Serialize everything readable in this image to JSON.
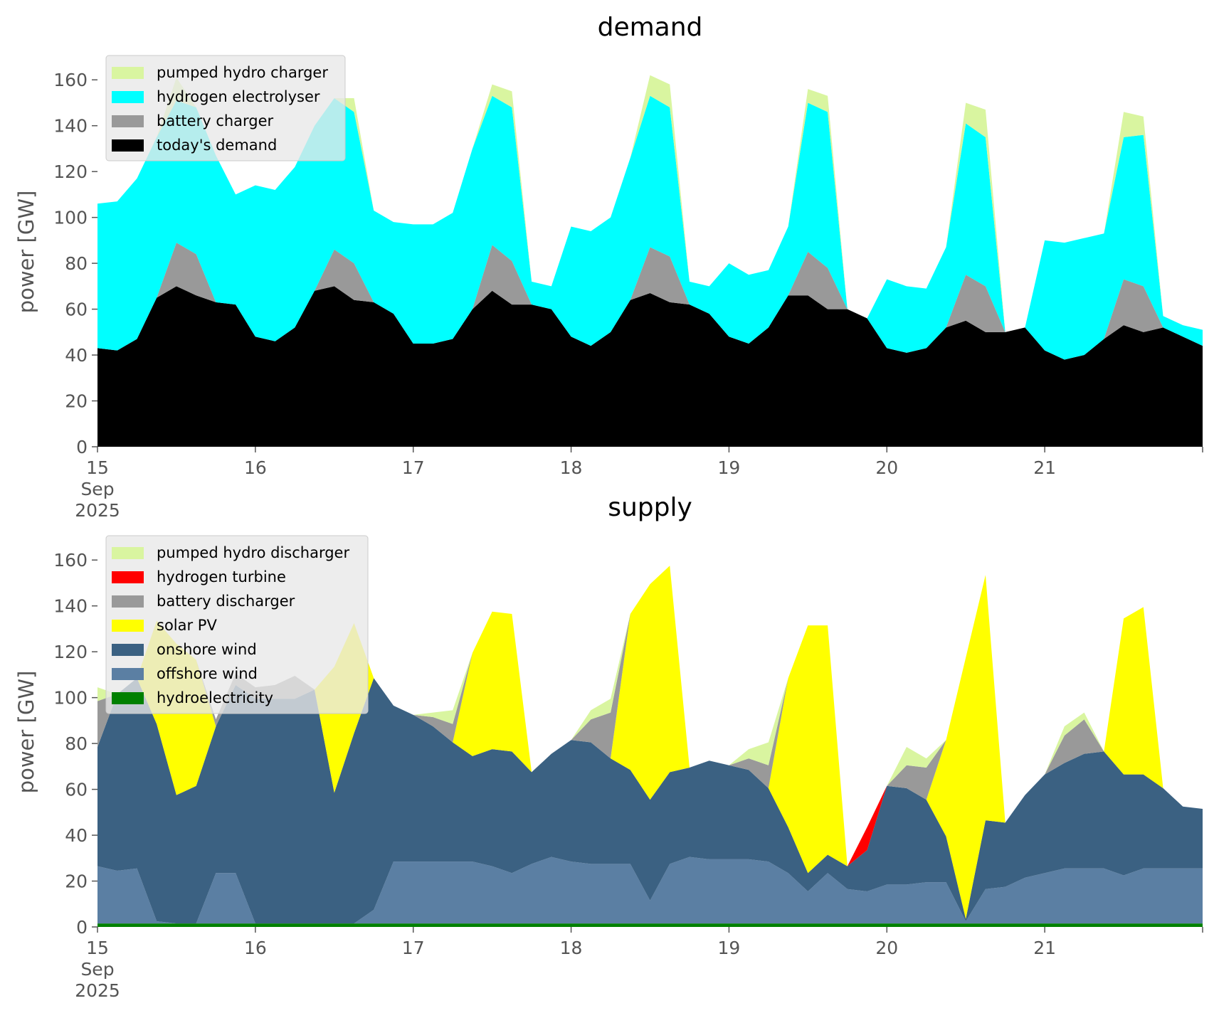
{
  "chart_data": [
    {
      "type": "area",
      "title": "demand",
      "xlabel": "",
      "ylabel": "power [GW]",
      "xlim": [
        "2025-09-15 00:00",
        "2025-09-22 00:00"
      ],
      "ylim": [
        0,
        170
      ],
      "yticks": [
        0,
        20,
        40,
        60,
        80,
        100,
        120,
        140,
        160
      ],
      "xticks": [
        {
          "date": "2025-09-15",
          "label": [
            "15",
            "Sep",
            "2025"
          ]
        },
        {
          "date": "2025-09-16",
          "label": [
            "16"
          ]
        },
        {
          "date": "2025-09-17",
          "label": [
            "17"
          ]
        },
        {
          "date": "2025-09-18",
          "label": [
            "18"
          ]
        },
        {
          "date": "2025-09-19",
          "label": [
            "19"
          ]
        },
        {
          "date": "2025-09-20",
          "label": [
            "20"
          ]
        },
        {
          "date": "2025-09-21",
          "label": [
            "21"
          ]
        }
      ],
      "stacked": true,
      "grid": false,
      "legend_position": "top-left",
      "x": [
        "2025-09-15 00:00",
        "2025-09-15 03:00",
        "2025-09-15 06:00",
        "2025-09-15 09:00",
        "2025-09-15 12:00",
        "2025-09-15 15:00",
        "2025-09-15 18:00",
        "2025-09-15 21:00",
        "2025-09-16 00:00",
        "2025-09-16 03:00",
        "2025-09-16 06:00",
        "2025-09-16 09:00",
        "2025-09-16 12:00",
        "2025-09-16 15:00",
        "2025-09-16 18:00",
        "2025-09-16 21:00",
        "2025-09-17 00:00",
        "2025-09-17 03:00",
        "2025-09-17 06:00",
        "2025-09-17 09:00",
        "2025-09-17 12:00",
        "2025-09-17 15:00",
        "2025-09-17 18:00",
        "2025-09-17 21:00",
        "2025-09-18 00:00",
        "2025-09-18 03:00",
        "2025-09-18 06:00",
        "2025-09-18 09:00",
        "2025-09-18 12:00",
        "2025-09-18 15:00",
        "2025-09-18 18:00",
        "2025-09-18 21:00",
        "2025-09-19 00:00",
        "2025-09-19 03:00",
        "2025-09-19 06:00",
        "2025-09-19 09:00",
        "2025-09-19 12:00",
        "2025-09-19 15:00",
        "2025-09-19 18:00",
        "2025-09-19 21:00",
        "2025-09-20 00:00",
        "2025-09-20 03:00",
        "2025-09-20 06:00",
        "2025-09-20 09:00",
        "2025-09-20 12:00",
        "2025-09-20 15:00",
        "2025-09-20 18:00",
        "2025-09-20 21:00",
        "2025-09-21 00:00",
        "2025-09-21 03:00",
        "2025-09-21 06:00",
        "2025-09-21 09:00",
        "2025-09-21 12:00",
        "2025-09-21 15:00",
        "2025-09-21 18:00",
        "2025-09-21 21:00",
        "2025-09-22 00:00"
      ],
      "series": [
        {
          "name": "today's demand",
          "color": "#000000",
          "values": [
            43,
            42,
            47,
            65,
            70,
            66,
            63,
            62,
            48,
            46,
            52,
            68,
            70,
            64,
            63,
            58,
            45,
            45,
            47,
            60,
            68,
            62,
            62,
            60,
            48,
            44,
            50,
            64,
            67,
            63,
            62,
            58,
            48,
            45,
            52,
            66,
            66,
            60,
            60,
            56,
            43,
            41,
            43,
            52,
            55,
            50,
            50,
            52,
            42,
            38,
            40,
            47,
            53,
            50,
            52,
            48,
            44
          ]
        },
        {
          "name": "battery charger",
          "color": "#999999",
          "values": [
            0,
            0,
            0,
            0,
            19,
            18,
            0,
            0,
            0,
            0,
            0,
            0,
            16,
            16,
            0,
            0,
            0,
            0,
            0,
            0,
            20,
            19,
            0,
            0,
            0,
            0,
            0,
            0,
            20,
            20,
            0,
            0,
            0,
            0,
            0,
            0,
            19,
            18,
            0,
            0,
            0,
            0,
            0,
            0,
            20,
            20,
            0,
            0,
            0,
            0,
            0,
            0,
            20,
            20,
            0,
            0,
            0
          ]
        },
        {
          "name": "hydrogen electrolyser",
          "color": "#00ffff",
          "values": [
            63,
            65,
            70,
            70,
            62,
            64,
            64,
            48,
            66,
            66,
            70,
            72,
            66,
            66,
            40,
            40,
            52,
            52,
            55,
            70,
            65,
            67,
            10,
            10,
            48,
            50,
            50,
            62,
            66,
            65,
            10,
            12,
            32,
            30,
            25,
            30,
            65,
            68,
            0,
            0,
            30,
            29,
            26,
            35,
            66,
            65,
            0,
            0,
            48,
            51,
            51,
            46,
            62,
            66,
            5,
            5,
            7
          ]
        },
        {
          "name": "pumped hydro charger",
          "color": "#d9f5a0",
          "values": [
            0,
            0,
            0,
            0,
            10,
            0,
            0,
            0,
            0,
            0,
            0,
            0,
            0,
            6,
            0,
            0,
            0,
            0,
            0,
            0,
            5,
            7,
            0,
            0,
            0,
            0,
            0,
            0,
            9,
            10,
            0,
            0,
            0,
            0,
            0,
            0,
            6,
            7,
            0,
            0,
            0,
            0,
            0,
            0,
            9,
            12,
            0,
            0,
            0,
            0,
            0,
            0,
            11,
            8,
            0,
            0,
            0
          ]
        }
      ]
    },
    {
      "type": "area",
      "title": "supply",
      "xlabel": "",
      "ylabel": "power [GW]",
      "xlim": [
        "2025-09-15 00:00",
        "2025-09-22 00:00"
      ],
      "ylim": [
        0,
        170
      ],
      "yticks": [
        0,
        20,
        40,
        60,
        80,
        100,
        120,
        140,
        160
      ],
      "xticks": [
        {
          "date": "2025-09-15",
          "label": [
            "15",
            "Sep",
            "2025"
          ]
        },
        {
          "date": "2025-09-16",
          "label": [
            "16"
          ]
        },
        {
          "date": "2025-09-17",
          "label": [
            "17"
          ]
        },
        {
          "date": "2025-09-18",
          "label": [
            "18"
          ]
        },
        {
          "date": "2025-09-19",
          "label": [
            "19"
          ]
        },
        {
          "date": "2025-09-20",
          "label": [
            "20"
          ]
        },
        {
          "date": "2025-09-21",
          "label": [
            "21"
          ]
        }
      ],
      "stacked": true,
      "grid": false,
      "legend_position": "top-left",
      "x": [
        "2025-09-15 00:00",
        "2025-09-15 03:00",
        "2025-09-15 06:00",
        "2025-09-15 09:00",
        "2025-09-15 12:00",
        "2025-09-15 15:00",
        "2025-09-15 18:00",
        "2025-09-15 21:00",
        "2025-09-16 00:00",
        "2025-09-16 03:00",
        "2025-09-16 06:00",
        "2025-09-16 09:00",
        "2025-09-16 12:00",
        "2025-09-16 15:00",
        "2025-09-16 18:00",
        "2025-09-16 21:00",
        "2025-09-17 00:00",
        "2025-09-17 03:00",
        "2025-09-17 06:00",
        "2025-09-17 09:00",
        "2025-09-17 12:00",
        "2025-09-17 15:00",
        "2025-09-17 18:00",
        "2025-09-17 21:00",
        "2025-09-18 00:00",
        "2025-09-18 03:00",
        "2025-09-18 06:00",
        "2025-09-18 09:00",
        "2025-09-18 12:00",
        "2025-09-18 15:00",
        "2025-09-18 18:00",
        "2025-09-18 21:00",
        "2025-09-19 00:00",
        "2025-09-19 03:00",
        "2025-09-19 06:00",
        "2025-09-19 09:00",
        "2025-09-19 12:00",
        "2025-09-19 15:00",
        "2025-09-19 18:00",
        "2025-09-19 21:00",
        "2025-09-20 00:00",
        "2025-09-20 03:00",
        "2025-09-20 06:00",
        "2025-09-20 09:00",
        "2025-09-20 12:00",
        "2025-09-20 15:00",
        "2025-09-20 18:00",
        "2025-09-20 21:00",
        "2025-09-21 00:00",
        "2025-09-21 03:00",
        "2025-09-21 06:00",
        "2025-09-21 09:00",
        "2025-09-21 12:00",
        "2025-09-21 15:00",
        "2025-09-21 18:00",
        "2025-09-21 21:00",
        "2025-09-22 00:00"
      ],
      "series": [
        {
          "name": "hydroelectricity",
          "color": "#008000",
          "values": [
            1.5,
            1.5,
            1.5,
            1.5,
            1.5,
            1.5,
            1.5,
            1.5,
            1.5,
            1.5,
            1.5,
            1.5,
            1.5,
            1.5,
            1.5,
            1.5,
            1.5,
            1.5,
            1.5,
            1.5,
            1.5,
            1.5,
            1.5,
            1.5,
            1.5,
            1.5,
            1.5,
            1.5,
            1.5,
            1.5,
            1.5,
            1.5,
            1.5,
            1.5,
            1.5,
            1.5,
            1.5,
            1.5,
            1.5,
            1.5,
            1.5,
            1.5,
            1.5,
            1.5,
            1.5,
            1.5,
            1.5,
            1.5,
            1.5,
            1.5,
            1.5,
            1.5,
            1.5,
            1.5,
            1.5,
            1.5,
            1.5
          ]
        },
        {
          "name": "offshore wind",
          "color": "#5b7fa3",
          "values": [
            25,
            23,
            24,
            1,
            0,
            0,
            22,
            22,
            0,
            0,
            0,
            0,
            0,
            0,
            6,
            27,
            27,
            27,
            27,
            27,
            25,
            22,
            26,
            29,
            27,
            26,
            26,
            26,
            10,
            26,
            29,
            28,
            28,
            28,
            27,
            22,
            14,
            22,
            15,
            14,
            17,
            17,
            18,
            18,
            1,
            15,
            16,
            20,
            22,
            24,
            24,
            24,
            21,
            24,
            24,
            24,
            24
          ]
        },
        {
          "name": "onshore wind",
          "color": "#3b6182",
          "values": [
            52,
            77,
            83,
            86,
            56,
            60,
            64,
            82,
            98,
            98,
            98,
            102,
            57,
            83,
            101,
            68,
            64,
            59,
            52,
            46,
            51,
            53,
            40,
            45,
            53,
            53,
            46,
            41,
            44,
            40,
            39,
            43,
            41,
            39,
            32,
            20,
            8,
            8,
            10,
            18,
            43,
            42,
            36,
            20,
            1,
            30,
            28,
            36,
            43,
            46,
            50,
            51,
            44,
            41,
            35,
            27,
            26
          ]
        },
        {
          "name": "solar PV",
          "color": "#ffff00",
          "values": [
            0,
            0,
            0,
            45,
            66,
            55,
            0,
            0,
            0,
            0,
            0,
            0,
            55,
            48,
            0,
            0,
            0,
            0,
            0,
            45,
            60,
            60,
            0,
            0,
            0,
            0,
            0,
            68,
            94,
            90,
            0,
            0,
            0,
            0,
            0,
            65,
            108,
            100,
            0,
            0,
            0,
            0,
            0,
            42,
            114,
            107,
            0,
            0,
            0,
            0,
            0,
            0,
            68,
            73,
            0,
            0,
            0
          ]
        },
        {
          "name": "battery discharger",
          "color": "#999999",
          "values": [
            20,
            0,
            0,
            0,
            0,
            0,
            3,
            5,
            5,
            6,
            10,
            0,
            0,
            0,
            0,
            0,
            0,
            4,
            8,
            0,
            0,
            0,
            0,
            0,
            0,
            10,
            20,
            0,
            0,
            0,
            0,
            0,
            0,
            5,
            10,
            0,
            0,
            0,
            0,
            0,
            0,
            10,
            14,
            0,
            0,
            0,
            0,
            0,
            0,
            12,
            15,
            0,
            0,
            0,
            0,
            0,
            0
          ]
        },
        {
          "name": "hydrogen turbine",
          "color": "#ff0000",
          "values": [
            0,
            0,
            0,
            0,
            0,
            0,
            0,
            0,
            0,
            0,
            0,
            0,
            0,
            0,
            0,
            0,
            0,
            0,
            0,
            0,
            0,
            0,
            0,
            0,
            0,
            0,
            0,
            0,
            0,
            0,
            0,
            0,
            0,
            0,
            0,
            0,
            0,
            0,
            0,
            10,
            0,
            0,
            0,
            0,
            0,
            0,
            0,
            0,
            0,
            0,
            0,
            0,
            0,
            0,
            0,
            0,
            0
          ]
        },
        {
          "name": "pumped hydro discharger",
          "color": "#d9f5a0",
          "values": [
            6,
            0,
            0,
            0,
            0,
            0,
            0,
            0,
            0,
            0,
            0,
            0,
            0,
            0,
            0,
            0,
            0,
            2,
            6,
            0,
            0,
            0,
            0,
            0,
            0,
            4,
            6,
            0,
            0,
            0,
            0,
            0,
            0,
            4,
            10,
            0,
            0,
            0,
            0,
            0,
            0,
            8,
            4,
            0,
            0,
            0,
            0,
            0,
            0,
            4,
            3,
            0,
            0,
            0,
            0,
            0,
            0
          ]
        }
      ]
    }
  ]
}
